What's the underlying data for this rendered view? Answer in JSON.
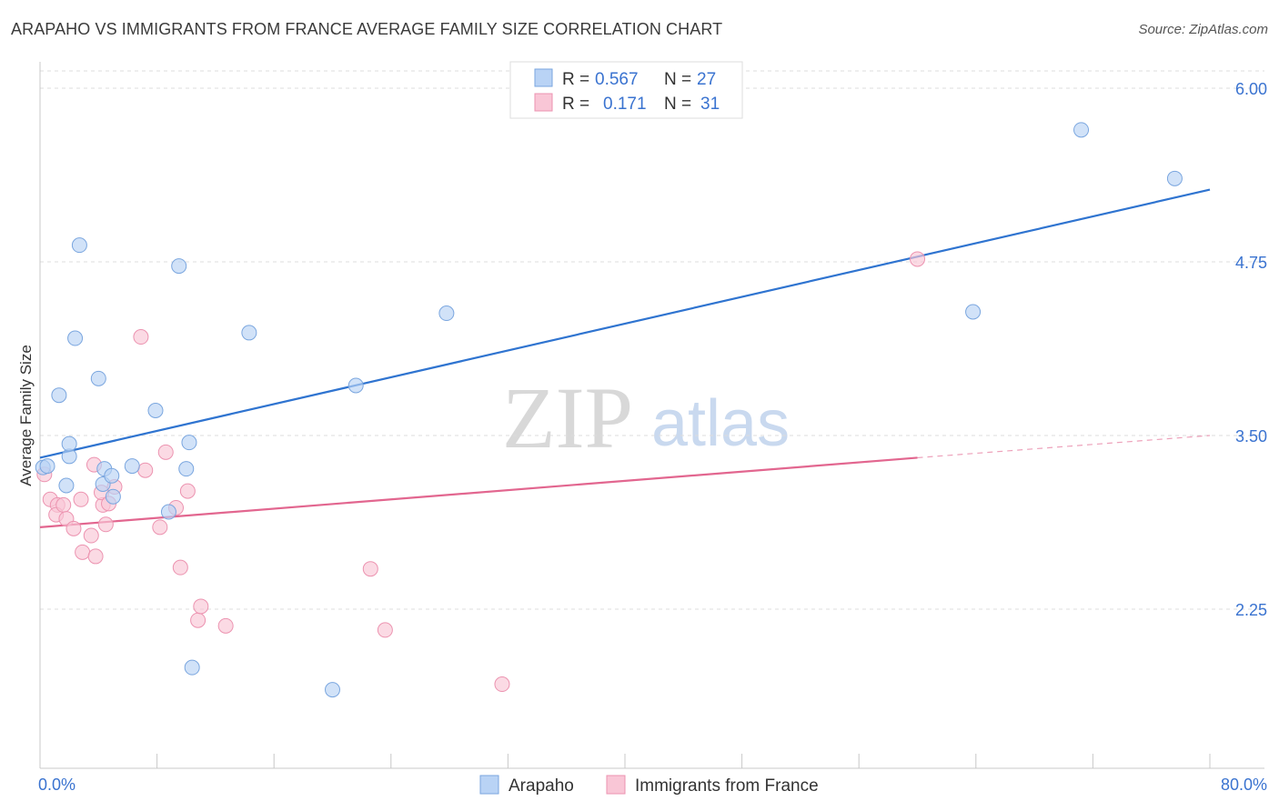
{
  "header": {
    "title": "ARAPAHO VS IMMIGRANTS FROM FRANCE AVERAGE FAMILY SIZE CORRELATION CHART",
    "source": "Source: ZipAtlas.com"
  },
  "watermark": {
    "zip": "ZIP",
    "atlas": "atlas"
  },
  "legend_top": {
    "rows": [
      {
        "r_label": "R =",
        "r_value": "0.567",
        "n_label": "N =",
        "n_value": "27"
      },
      {
        "r_label": "R =",
        "r_value": "0.171",
        "n_label": "N =",
        "n_value": "31"
      }
    ]
  },
  "colors": {
    "blue_fill": "#b9d3f5",
    "blue_stroke": "#7aa6df",
    "blue_line": "#2f74d0",
    "pink_fill": "#f9c6d6",
    "pink_stroke": "#ec93b0",
    "pink_line": "#e2668f",
    "grid": "#dddddd",
    "axis_text": "#3a73d0"
  },
  "chart_data": {
    "type": "scatter",
    "title": "ARAPAHO VS IMMIGRANTS FROM FRANCE AVERAGE FAMILY SIZE CORRELATION CHART",
    "xlabel": "",
    "ylabel": "Average Family Size",
    "xlim": [
      0,
      80
    ],
    "ylim": [
      1.25,
      6.35
    ],
    "x_tick_labels": [
      "0.0%",
      "80.0%"
    ],
    "y_ticks": [
      2.25,
      3.5,
      4.75,
      6.0
    ],
    "y_tick_labels": [
      "2.25",
      "3.50",
      "4.75",
      "6.00"
    ],
    "grid": true,
    "legend_position": "bottom",
    "series": [
      {
        "name": "Arapaho",
        "color": "#b9d3f5",
        "r": 0.567,
        "n": 27,
        "trend": {
          "x": [
            0,
            80
          ],
          "y": [
            3.34,
            5.27
          ]
        },
        "points": [
          [
            0.2,
            3.27
          ],
          [
            1.3,
            3.79
          ],
          [
            2.0,
            3.35
          ],
          [
            1.8,
            3.14
          ],
          [
            2.0,
            3.44
          ],
          [
            2.4,
            4.2
          ],
          [
            2.7,
            4.87
          ],
          [
            4.0,
            3.91
          ],
          [
            4.4,
            3.26
          ],
          [
            4.3,
            3.15
          ],
          [
            4.9,
            3.21
          ],
          [
            5.0,
            3.06
          ],
          [
            6.3,
            3.28
          ],
          [
            7.9,
            3.68
          ],
          [
            8.8,
            2.95
          ],
          [
            9.5,
            4.72
          ],
          [
            10.0,
            3.26
          ],
          [
            10.2,
            3.45
          ],
          [
            10.4,
            1.83
          ],
          [
            14.3,
            4.24
          ],
          [
            20.0,
            1.67
          ],
          [
            21.6,
            3.86
          ],
          [
            27.8,
            4.38
          ],
          [
            63.8,
            4.39
          ],
          [
            71.2,
            5.7
          ],
          [
            77.6,
            5.35
          ],
          [
            0.5,
            3.28
          ]
        ]
      },
      {
        "name": "Immigrants from France",
        "color": "#f9c6d6",
        "r": 0.171,
        "n": 31,
        "trend": {
          "x": [
            0,
            60,
            80
          ],
          "y": [
            2.84,
            3.34,
            3.5
          ],
          "solid_until_x": 60
        },
        "points": [
          [
            0.3,
            3.22
          ],
          [
            0.7,
            3.04
          ],
          [
            1.2,
            3.0
          ],
          [
            1.1,
            2.93
          ],
          [
            1.6,
            3.0
          ],
          [
            1.8,
            2.9
          ],
          [
            2.3,
            2.83
          ],
          [
            2.8,
            3.04
          ],
          [
            2.9,
            2.66
          ],
          [
            3.5,
            2.78
          ],
          [
            3.7,
            3.29
          ],
          [
            3.8,
            2.63
          ],
          [
            4.3,
            3.0
          ],
          [
            4.2,
            3.09
          ],
          [
            4.5,
            2.86
          ],
          [
            4.7,
            3.01
          ],
          [
            5.1,
            3.13
          ],
          [
            6.9,
            4.21
          ],
          [
            7.2,
            3.25
          ],
          [
            8.2,
            2.84
          ],
          [
            8.6,
            3.38
          ],
          [
            9.3,
            2.98
          ],
          [
            9.6,
            2.55
          ],
          [
            10.1,
            3.1
          ],
          [
            10.8,
            2.17
          ],
          [
            11.0,
            2.27
          ],
          [
            12.7,
            2.13
          ],
          [
            22.6,
            2.54
          ],
          [
            23.6,
            2.1
          ],
          [
            31.6,
            1.71
          ],
          [
            60.0,
            4.77
          ]
        ]
      }
    ]
  }
}
